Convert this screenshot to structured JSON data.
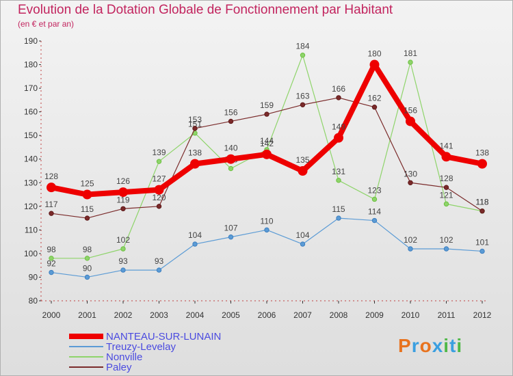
{
  "title": "Evolution de la Dotation Globale de Fonctionnement par Habitant",
  "subtitle": "(en € et par an)",
  "logo": {
    "text": "Proxiti",
    "colors": [
      "#e8731f",
      "#3a9fe0",
      "#e8731f",
      "#3a9fe0",
      "#4fb848",
      "#3a9fe0",
      "#4fb848"
    ]
  },
  "chart_data": {
    "type": "line",
    "x": [
      "2000",
      "2001",
      "2002",
      "2003",
      "2004",
      "2005",
      "2006",
      "2007",
      "2008",
      "2009",
      "2010",
      "2011",
      "2012"
    ],
    "ylim": [
      80,
      190
    ],
    "yticks": [
      80,
      90,
      100,
      110,
      120,
      130,
      140,
      150,
      160,
      170,
      180,
      190
    ],
    "grid": false,
    "legend_position": "bottom-left",
    "series": [
      {
        "name": "Treuzy-Levelay",
        "color": "#5b9bd5",
        "dot": "#3d7fc0",
        "width": 1.2,
        "values": [
          92,
          90,
          93,
          93,
          104,
          107,
          110,
          104,
          115,
          114,
          102,
          102,
          101
        ],
        "labels": [
          "92",
          "90",
          "93",
          "93",
          "104",
          "107",
          "110",
          "104",
          "115",
          "114",
          "102",
          "102",
          "101"
        ]
      },
      {
        "name": "Nonville",
        "color": "#8ed46a",
        "dot": "#6cc040",
        "width": 1.2,
        "values": [
          98,
          98,
          102,
          139,
          151,
          136,
          144,
          184,
          131,
          123,
          181,
          121,
          118
        ],
        "labels": [
          "98",
          "98",
          "102",
          "139",
          "151",
          "136",
          "144",
          "184",
          "131",
          "123",
          "181",
          "121",
          "118"
        ]
      },
      {
        "name": "Paley",
        "color": "#7a2a2a",
        "dot": "#5e1818",
        "width": 1.2,
        "values": [
          117,
          115,
          119,
          120,
          153,
          156,
          159,
          163,
          166,
          162,
          130,
          128,
          118
        ],
        "labels": [
          "117",
          "115",
          "119",
          "120",
          "153",
          "156",
          "159",
          "163",
          "166",
          "162",
          "130",
          "128",
          "118"
        ]
      },
      {
        "name": "NANTEAU-SUR-LUNAIN",
        "color": "#ee0000",
        "dot": "#ee0000",
        "width": 8,
        "values": [
          128,
          125,
          126,
          127,
          138,
          140,
          142,
          135,
          149,
          180,
          156,
          141,
          138
        ],
        "labels": [
          "128",
          "125",
          "126",
          "127",
          "138",
          "140",
          "142",
          "135",
          "149",
          "180",
          "156",
          "141",
          "138"
        ]
      }
    ],
    "legend_order": [
      "NANTEAU-SUR-LUNAIN",
      "Treuzy-Levelay",
      "Nonville",
      "Paley"
    ]
  }
}
